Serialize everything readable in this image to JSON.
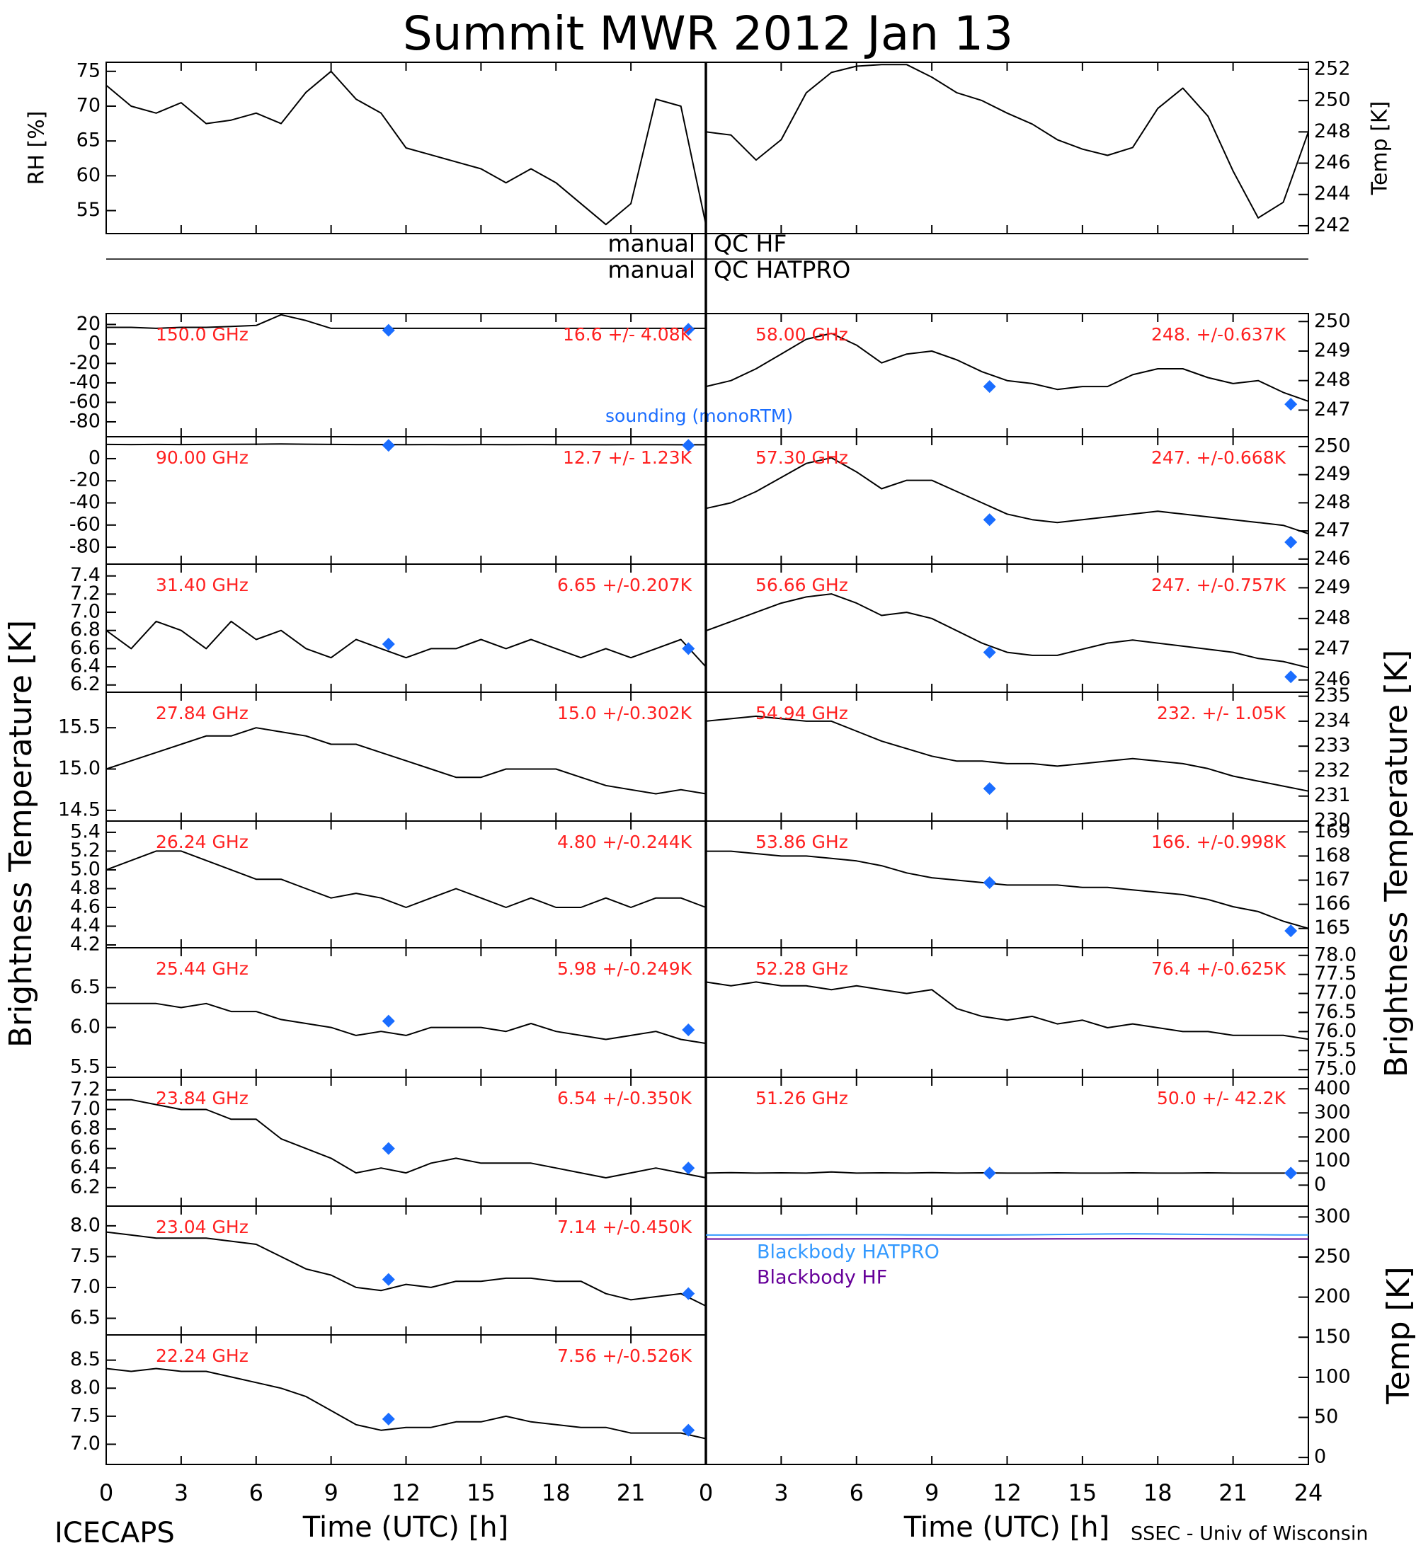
{
  "title": "Summit MWR 2012 Jan 13",
  "qc": [
    [
      "manual",
      "QC HF"
    ],
    [
      "manual",
      "QC HATPRO"
    ]
  ],
  "ylabel": "Brightness Temperature [K]",
  "xlabel": "Time (UTC) [h]",
  "footer_left": "ICECAPS",
  "footer_right": "SSEC - Univ of Wisconsin",
  "sounding_label": "sounding (monoRTM)",
  "time": {
    "x": [
      0,
      1,
      2,
      3,
      4,
      5,
      6,
      7,
      8,
      9,
      10,
      11,
      12,
      13,
      14,
      15,
      16,
      17,
      18,
      19,
      20,
      21,
      22,
      23,
      24
    ],
    "xlim": [
      0,
      24
    ],
    "xticks": [
      0,
      3,
      6,
      9,
      12,
      15,
      18,
      21,
      24
    ]
  },
  "chart_data": [
    {
      "type": "line",
      "ylabel": "RH [%]",
      "color": "#000000",
      "ylim": [
        51.7,
        76.3
      ],
      "yticks": [
        55,
        60,
        65,
        70,
        75
      ],
      "values": [
        73,
        70,
        69,
        70.5,
        67.5,
        68,
        69,
        67.5,
        72,
        75,
        71,
        69,
        64,
        63,
        62,
        61,
        59,
        61,
        59,
        56,
        53,
        56,
        71,
        70,
        53
      ]
    },
    {
      "type": "line",
      "ylabel": "Temp [K]",
      "color": "#000000",
      "ylim": [
        241.5,
        252.45
      ],
      "yticks": [
        242,
        244,
        246,
        248,
        250,
        252
      ],
      "values": [
        248,
        247.8,
        246.2,
        247.5,
        250.5,
        251.8,
        252.2,
        252.3,
        252.3,
        251.5,
        250.5,
        250,
        249.2,
        248.5,
        247.5,
        246.9,
        246.5,
        247,
        249.5,
        250.8,
        249,
        245.5,
        242.5,
        243.5,
        248
      ]
    },
    {
      "type": "line",
      "label": "150.0 GHz",
      "stats": "16.6 +/-  4.08K",
      "color": "#000000",
      "ylim": [
        -95.3,
        31.2
      ],
      "yticks": [
        20,
        0,
        -20,
        -40,
        -60,
        -80
      ],
      "values": [
        17,
        17,
        16,
        17,
        17,
        18,
        19,
        30,
        24,
        16,
        16,
        16,
        16,
        16,
        16,
        16,
        16,
        16,
        16,
        16,
        16,
        16,
        16,
        16,
        16
      ],
      "sounding": {
        "color": "#1a6dff",
        "x": [
          11.3,
          23.3
        ],
        "values": [
          14,
          15
        ]
      }
    },
    {
      "type": "line",
      "label": "90.00 GHz",
      "stats": "12.7 +/-  1.23K",
      "color": "#000000",
      "ylim": [
        -95.3,
        19.8
      ],
      "yticks": [
        0,
        -20,
        -40,
        -60,
        -80
      ],
      "values": [
        12.8,
        12.7,
        12.8,
        12.7,
        12.8,
        12.9,
        13,
        13.2,
        13,
        12.8,
        12.7,
        12.7,
        12.6,
        12.7,
        12.6,
        12.7,
        12.6,
        12.7,
        12.6,
        12.6,
        12.5,
        12.6,
        12.6,
        12.5,
        12.5
      ],
      "sounding": {
        "color": "#1a6dff",
        "x": [
          11.3,
          23.3
        ],
        "values": [
          12,
          12
        ]
      }
    },
    {
      "type": "line",
      "label": "31.40 GHz",
      "stats": "6.65 +/-0.207K",
      "color": "#000000",
      "ylim": [
        6.12,
        7.53
      ],
      "yticks": [
        6.2,
        6.4,
        6.6,
        6.8,
        {
          "value": 7,
          "label": "7.0"
        },
        7.2,
        7.4
      ],
      "values": [
        6.8,
        6.6,
        6.9,
        6.8,
        6.6,
        6.9,
        6.7,
        6.8,
        6.6,
        6.5,
        6.7,
        6.6,
        6.5,
        6.6,
        6.6,
        6.7,
        6.6,
        6.7,
        6.6,
        6.5,
        6.6,
        6.5,
        6.6,
        6.7,
        6.4
      ],
      "sounding": {
        "color": "#1a6dff",
        "x": [
          11.3,
          23.3
        ],
        "values": [
          6.65,
          6.6
        ]
      }
    },
    {
      "type": "line",
      "label": "27.84 GHz",
      "stats": "15.0 +/-0.302K",
      "color": "#000000",
      "ylim": [
        14.37,
        15.93
      ],
      "yticks": [
        14.5,
        {
          "value": 15,
          "label": "15.0"
        },
        15.5
      ],
      "values": [
        15,
        15.1,
        15.2,
        15.3,
        15.4,
        15.4,
        15.5,
        15.45,
        15.4,
        15.3,
        15.3,
        15.2,
        15.1,
        15,
        14.9,
        14.9,
        15,
        15,
        15,
        14.9,
        14.8,
        14.75,
        14.7,
        14.75,
        14.7
      ]
    },
    {
      "type": "line",
      "label": "26.24 GHz",
      "stats": "4.80 +/-0.244K",
      "color": "#000000",
      "ylim": [
        4.17,
        5.52
      ],
      "yticks": [
        4.2,
        4.4,
        4.6,
        4.8,
        {
          "value": 5,
          "label": "5.0"
        },
        5.2,
        5.4
      ],
      "values": [
        5,
        5.1,
        5.2,
        5.2,
        5.1,
        5,
        4.9,
        4.9,
        4.8,
        4.7,
        4.75,
        4.7,
        4.6,
        4.7,
        4.8,
        4.7,
        4.6,
        4.7,
        4.6,
        4.6,
        4.7,
        4.6,
        4.7,
        4.7,
        4.6
      ]
    },
    {
      "type": "line",
      "label": "25.44 GHz",
      "stats": "5.98 +/-0.249K",
      "color": "#000000",
      "ylim": [
        5.375,
        7.0
      ],
      "yticks": [
        5.5,
        {
          "value": 6,
          "label": "6.0"
        },
        6.5
      ],
      "values": [
        6.3,
        6.3,
        6.3,
        6.25,
        6.3,
        6.2,
        6.2,
        6.1,
        6.05,
        6,
        5.9,
        5.95,
        5.9,
        6,
        6,
        6,
        5.95,
        6.05,
        5.95,
        5.9,
        5.85,
        5.9,
        5.95,
        5.85,
        5.8
      ],
      "sounding": {
        "color": "#1a6dff",
        "x": [
          11.3,
          23.3
        ],
        "values": [
          6.08,
          5.97
        ]
      }
    },
    {
      "type": "line",
      "label": "23.84 GHz",
      "stats": "6.54 +/-0.350K",
      "color": "#000000",
      "ylim": [
        6.01,
        7.33
      ],
      "yticks": [
        6.2,
        6.4,
        6.6,
        6.8,
        {
          "value": 7,
          "label": "7.0"
        },
        7.2
      ],
      "values": [
        7.1,
        7.1,
        7.05,
        7,
        7,
        6.9,
        6.9,
        6.7,
        6.6,
        6.5,
        6.35,
        6.4,
        6.35,
        6.45,
        6.5,
        6.45,
        6.45,
        6.45,
        6.4,
        6.35,
        6.3,
        6.35,
        6.4,
        6.35,
        6.3
      ],
      "sounding": {
        "color": "#1a6dff",
        "x": [
          11.3,
          23.3
        ],
        "values": [
          6.6,
          6.4
        ]
      }
    },
    {
      "type": "line",
      "label": "23.04 GHz",
      "stats": "7.14 +/-0.450K",
      "color": "#000000",
      "ylim": [
        6.23,
        8.32
      ],
      "yticks": [
        6.5,
        {
          "value": 7,
          "label": "7.0"
        },
        7.5,
        {
          "value": 8,
          "label": "8.0"
        }
      ],
      "values": [
        7.9,
        7.85,
        7.8,
        7.8,
        7.8,
        7.75,
        7.7,
        7.5,
        7.3,
        7.2,
        7,
        6.95,
        7.05,
        7,
        7.1,
        7.1,
        7.15,
        7.15,
        7.1,
        7.1,
        6.9,
        6.8,
        6.85,
        6.9,
        6.7
      ],
      "sounding": {
        "color": "#1a6dff",
        "x": [
          11.3,
          23.3
        ],
        "values": [
          7.13,
          6.9
        ]
      }
    },
    {
      "type": "line",
      "label": "22.24 GHz",
      "stats": "7.56 +/-0.526K",
      "color": "#000000",
      "ylim": [
        6.64,
        8.95
      ],
      "yticks": [
        {
          "value": 7,
          "label": "7.0"
        },
        7.5,
        {
          "value": 8,
          "label": "8.0"
        },
        8.5
      ],
      "values": [
        8.35,
        8.3,
        8.35,
        8.3,
        8.3,
        8.2,
        8.1,
        8,
        7.85,
        7.6,
        7.35,
        7.25,
        7.3,
        7.3,
        7.4,
        7.4,
        7.5,
        7.4,
        7.35,
        7.3,
        7.3,
        7.2,
        7.2,
        7.2,
        7.1
      ],
      "sounding": {
        "color": "#1a6dff",
        "x": [
          11.3,
          23.3
        ],
        "values": [
          7.45,
          7.25
        ]
      }
    },
    {
      "type": "line",
      "label": "58.00 GHz",
      "stats": "248. +/-0.637K",
      "color": "#000000",
      "ylim": [
        246.1,
        250.27
      ],
      "yticks": [
        247,
        248,
        249,
        250
      ],
      "values": [
        247.8,
        248,
        248.4,
        248.9,
        249.4,
        249.6,
        249.2,
        248.6,
        248.9,
        249,
        248.7,
        248.3,
        248,
        247.9,
        247.7,
        247.8,
        247.8,
        248.2,
        248.4,
        248.4,
        248.1,
        247.9,
        248,
        247.6,
        247.3
      ],
      "sounding": {
        "color": "#1a6dff",
        "x": [
          11.3,
          23.3
        ],
        "values": [
          247.8,
          247.2
        ]
      }
    },
    {
      "type": "line",
      "label": "57.30 GHz",
      "stats": "247. +/-0.668K",
      "color": "#000000",
      "ylim": [
        245.82,
        250.35
      ],
      "yticks": [
        246,
        247,
        248,
        249,
        250
      ],
      "values": [
        247.8,
        248,
        248.4,
        248.9,
        249.4,
        249.6,
        249.1,
        248.5,
        248.8,
        248.8,
        248.4,
        248,
        247.6,
        247.4,
        247.3,
        247.4,
        247.5,
        247.6,
        247.7,
        247.6,
        247.5,
        247.4,
        247.3,
        247.2,
        246.9
      ],
      "sounding": {
        "color": "#1a6dff",
        "x": [
          11.3,
          23.3
        ],
        "values": [
          247.4,
          246.6
        ]
      }
    },
    {
      "type": "line",
      "label": "56.66 GHz",
      "stats": "247. +/-0.757K",
      "color": "#000000",
      "ylim": [
        245.6,
        249.77
      ],
      "yticks": [
        246,
        247,
        248,
        249
      ],
      "values": [
        247.6,
        247.9,
        248.2,
        248.5,
        248.7,
        248.8,
        248.5,
        248.1,
        248.2,
        248,
        247.6,
        247.2,
        246.9,
        246.8,
        246.8,
        247,
        247.2,
        247.3,
        247.2,
        247.1,
        247,
        246.9,
        246.7,
        246.6,
        246.4
      ],
      "sounding": {
        "color": "#1a6dff",
        "x": [
          11.3,
          23.3
        ],
        "values": [
          246.9,
          246.1
        ]
      }
    },
    {
      "type": "line",
      "label": "54.94 GHz",
      "stats": "232. +/- 1.05K",
      "color": "#000000",
      "ylim": [
        230,
        235.16
      ],
      "yticks": [
        230,
        231,
        232,
        233,
        234,
        235
      ],
      "values": [
        234,
        234.1,
        234.2,
        234.1,
        234,
        234,
        233.6,
        233.2,
        232.9,
        232.6,
        232.4,
        232.4,
        232.3,
        232.3,
        232.2,
        232.3,
        232.4,
        232.5,
        232.4,
        232.3,
        232.1,
        231.8,
        231.6,
        231.4,
        231.2
      ],
      "sounding": {
        "color": "#1a6dff",
        "x": [
          11.3
        ],
        "values": [
          231.3
        ]
      }
    },
    {
      "type": "line",
      "label": "53.86 GHz",
      "stats": "166. +/-0.998K",
      "color": "#000000",
      "ylim": [
        164.2,
        169.45
      ],
      "yticks": [
        165,
        166,
        167,
        168,
        169
      ],
      "values": [
        168.2,
        168.2,
        168.1,
        168,
        168,
        167.9,
        167.8,
        167.6,
        167.3,
        167.1,
        167,
        166.9,
        166.8,
        166.8,
        166.8,
        166.7,
        166.7,
        166.6,
        166.5,
        166.4,
        166.2,
        165.9,
        165.7,
        165.3,
        165
      ],
      "sounding": {
        "color": "#1a6dff",
        "x": [
          11.3,
          23.3
        ],
        "values": [
          166.9,
          164.9
        ]
      }
    },
    {
      "type": "line",
      "label": "52.28 GHz",
      "stats": "76.4 +/-0.625K",
      "color": "#000000",
      "ylim": [
        74.8,
        78.2
      ],
      "yticks": [
        {
          "value": 75,
          "label": "75.0"
        },
        75.5,
        {
          "value": 76,
          "label": "76.0"
        },
        76.5,
        {
          "value": 77,
          "label": "77.0"
        },
        77.5,
        {
          "value": 78,
          "label": "78.0"
        }
      ],
      "values": [
        77.3,
        77.2,
        77.3,
        77.2,
        77.2,
        77.1,
        77.2,
        77.1,
        77,
        77.1,
        76.6,
        76.4,
        76.3,
        76.4,
        76.2,
        76.3,
        76.1,
        76.2,
        76.1,
        76,
        76,
        75.9,
        75.9,
        75.9,
        75.8
      ]
    },
    {
      "type": "line",
      "label": "51.26 GHz",
      "stats": "50.0 +/- 42.2K",
      "color": "#000000",
      "ylim": [
        -87,
        447.8
      ],
      "yticks": [
        0,
        100,
        200,
        300,
        400
      ],
      "values": [
        50,
        52,
        50,
        51,
        50,
        55,
        50,
        51,
        50,
        52,
        50,
        51,
        50,
        50,
        51,
        50,
        50,
        51,
        50,
        50,
        51,
        50,
        50,
        50,
        50
      ],
      "sounding": {
        "color": "#1a6dff",
        "x": [
          11.3,
          23.3
        ],
        "values": [
          50,
          50
        ]
      }
    },
    {
      "type": "line",
      "ylabel": "Temp [K]",
      "ylim": [
        -8.7,
        313.6
      ],
      "yticks": [
        0,
        50,
        100,
        150,
        200,
        250,
        300
      ],
      "series": [
        {
          "name": "Blackbody HATPRO",
          "color": "#3399ff",
          "values": [
            277.5,
            277.5,
            277.6,
            277.6,
            277.7,
            277.8,
            277.8,
            277.8,
            277.7,
            277.6,
            277.5,
            277.5,
            277.6,
            277.8,
            278.2,
            278.5,
            278.8,
            279,
            278.8,
            278.5,
            278.2,
            278,
            277.8,
            277.7,
            277.6
          ]
        },
        {
          "name": "Blackbody HF",
          "color": "#660099",
          "values": [
            272.5,
            272.5,
            272.6,
            272.6,
            272.7,
            272.7,
            272.8,
            272.8,
            272.7,
            272.6,
            272.5,
            272.5,
            272.5,
            272.6,
            272.7,
            272.8,
            272.9,
            273,
            272.9,
            272.8,
            272.7,
            272.6,
            272.6,
            272.5,
            272.5
          ]
        }
      ]
    }
  ]
}
